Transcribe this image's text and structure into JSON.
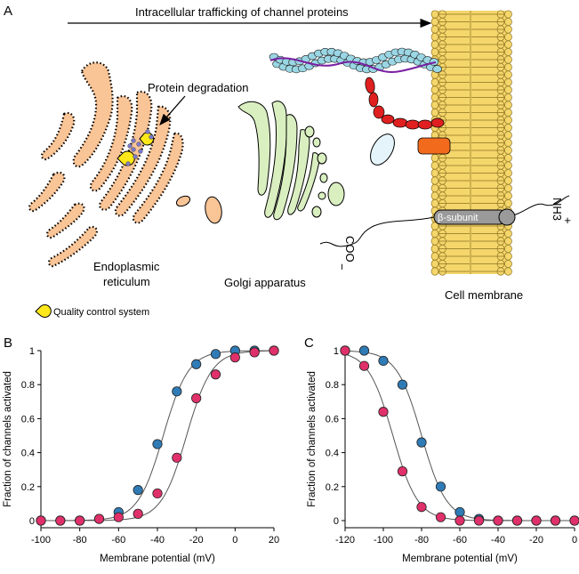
{
  "panel_a": {
    "letter": "A",
    "arrow_label": "Intracellular trafficking of channel proteins",
    "protein_degradation": "Protein degradation",
    "er_label_line1": "Endoplasmic",
    "er_label_line2": "reticulum",
    "golgi_label": "Golgi apparatus",
    "membrane_label": "Cell membrane",
    "beta_subunit": "β-subunit",
    "c_terminus": "COO",
    "c_charge": "−",
    "n_terminus": "NH3",
    "n_charge": "+",
    "legend_label": "Quality control system",
    "colors": {
      "er": "#f9c496",
      "golgi": "#d9efc0",
      "membrane": "#f5d66b",
      "actin": "#9ad6e4",
      "red_chain": "#e02020",
      "orange_protein": "#f26b1d",
      "quality_control": "#ffe81a",
      "beta": "#9a9a9a"
    }
  },
  "chart_data": [
    {
      "panel": "B",
      "type": "scatter",
      "xlabel": "Membrane potential (mV)",
      "ylabel": "Fraction of channels activated",
      "xlim": [
        -100,
        20
      ],
      "ylim": [
        0,
        1
      ],
      "xticks": [
        -100,
        -80,
        -60,
        -40,
        -20,
        0,
        20
      ],
      "yticks": [
        0,
        0.2,
        0.4,
        0.6,
        0.8,
        1
      ],
      "x": [
        -100,
        -90,
        -80,
        -70,
        -60,
        -50,
        -40,
        -30,
        -20,
        -10,
        0,
        10,
        20
      ],
      "series": [
        {
          "color": "#2f7bb6",
          "v_half": -37,
          "slope": 6.5,
          "values": [
            0,
            0,
            0,
            0.01,
            0.05,
            0.18,
            0.45,
            0.76,
            0.92,
            0.98,
            1,
            1,
            1
          ]
        },
        {
          "color": "#e0306a",
          "v_half": -25,
          "slope": 6.5,
          "values": [
            0,
            0,
            0,
            0.01,
            0.02,
            0.04,
            0.16,
            0.37,
            0.72,
            0.86,
            0.96,
            0.99,
            1
          ]
        }
      ]
    },
    {
      "panel": "C",
      "type": "scatter",
      "xlabel": "Membrane potential (mV)",
      "ylabel": "Fraction of channels activated",
      "xlim": [
        -120,
        0
      ],
      "ylim": [
        0,
        1
      ],
      "xticks": [
        -120,
        -100,
        -80,
        -60,
        -40,
        -20,
        0
      ],
      "yticks": [
        0,
        0.2,
        0.4,
        0.6,
        0.8,
        1
      ],
      "x": [
        -120,
        -110,
        -100,
        -90,
        -80,
        -70,
        -60,
        -50,
        -40,
        -30,
        -20,
        -10,
        0
      ],
      "series": [
        {
          "color": "#2f7bb6",
          "v_half": -80,
          "slope": -6.5,
          "values": [
            1,
            1,
            0.94,
            0.8,
            0.46,
            0.2,
            0.05,
            0.01,
            0,
            0,
            0,
            0,
            0
          ]
        },
        {
          "color": "#e0306a",
          "v_half": -95,
          "slope": -6.5,
          "values": [
            1,
            0.91,
            0.64,
            0.29,
            0.08,
            0.02,
            0,
            0,
            0,
            0,
            0,
            0,
            0
          ]
        }
      ]
    }
  ],
  "panel_b_letter": "B",
  "panel_c_letter": "C"
}
